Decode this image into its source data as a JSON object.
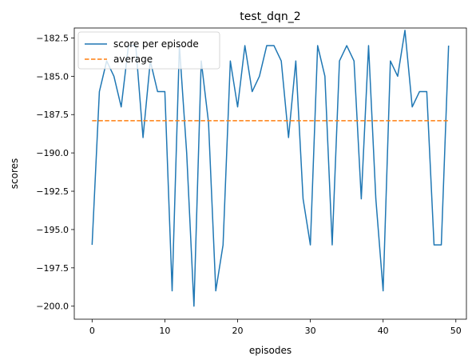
{
  "chart_data": {
    "type": "line",
    "title": "test_dqn_2",
    "xlabel": "episodes",
    "ylabel": "scores",
    "xlim": [
      -2.45,
      51.45
    ],
    "ylim": [
      -200.85,
      -181.85
    ],
    "xticks": [
      0,
      10,
      20,
      30,
      40,
      50
    ],
    "yticks": [
      -200.0,
      -197.5,
      -195.0,
      -192.5,
      -190.0,
      -187.5,
      -185.0,
      -182.5
    ],
    "ytick_labels": [
      "−200.0",
      "−197.5",
      "−195.0",
      "−192.5",
      "−190.0",
      "−187.5",
      "−185.0",
      "−182.5"
    ],
    "xtick_labels": [
      "0",
      "10",
      "20",
      "30",
      "40",
      "50"
    ],
    "grid": false,
    "legend_position": "top-left",
    "series": [
      {
        "name": "score per episode",
        "color": "#1f77b4",
        "style": "solid",
        "x": [
          0,
          1,
          2,
          3,
          4,
          5,
          6,
          7,
          8,
          9,
          10,
          11,
          12,
          13,
          14,
          15,
          16,
          17,
          18,
          19,
          20,
          21,
          22,
          23,
          24,
          25,
          26,
          27,
          28,
          29,
          30,
          31,
          32,
          33,
          34,
          35,
          36,
          37,
          38,
          39,
          40,
          41,
          42,
          43,
          44,
          45,
          46,
          47,
          48,
          49
        ],
        "y": [
          -196,
          -186,
          -184,
          -185,
          -187,
          -183,
          -183,
          -189,
          -184,
          -186,
          -186,
          -199,
          -183,
          -190,
          -200,
          -184,
          -188,
          -199,
          -196,
          -184,
          -187,
          -183,
          -186,
          -185,
          -183,
          -183,
          -184,
          -189,
          -184,
          -193,
          -196,
          -183,
          -185,
          -196,
          -184,
          -183,
          -184,
          -193,
          -183,
          -193,
          -199,
          -184,
          -185,
          -182,
          -187,
          -186,
          -186,
          -196,
          -196,
          -183
        ]
      },
      {
        "name": "average",
        "color": "#ff7f0e",
        "style": "dashed",
        "x": [
          0,
          49
        ],
        "y": [
          -187.9,
          -187.9
        ]
      }
    ]
  }
}
